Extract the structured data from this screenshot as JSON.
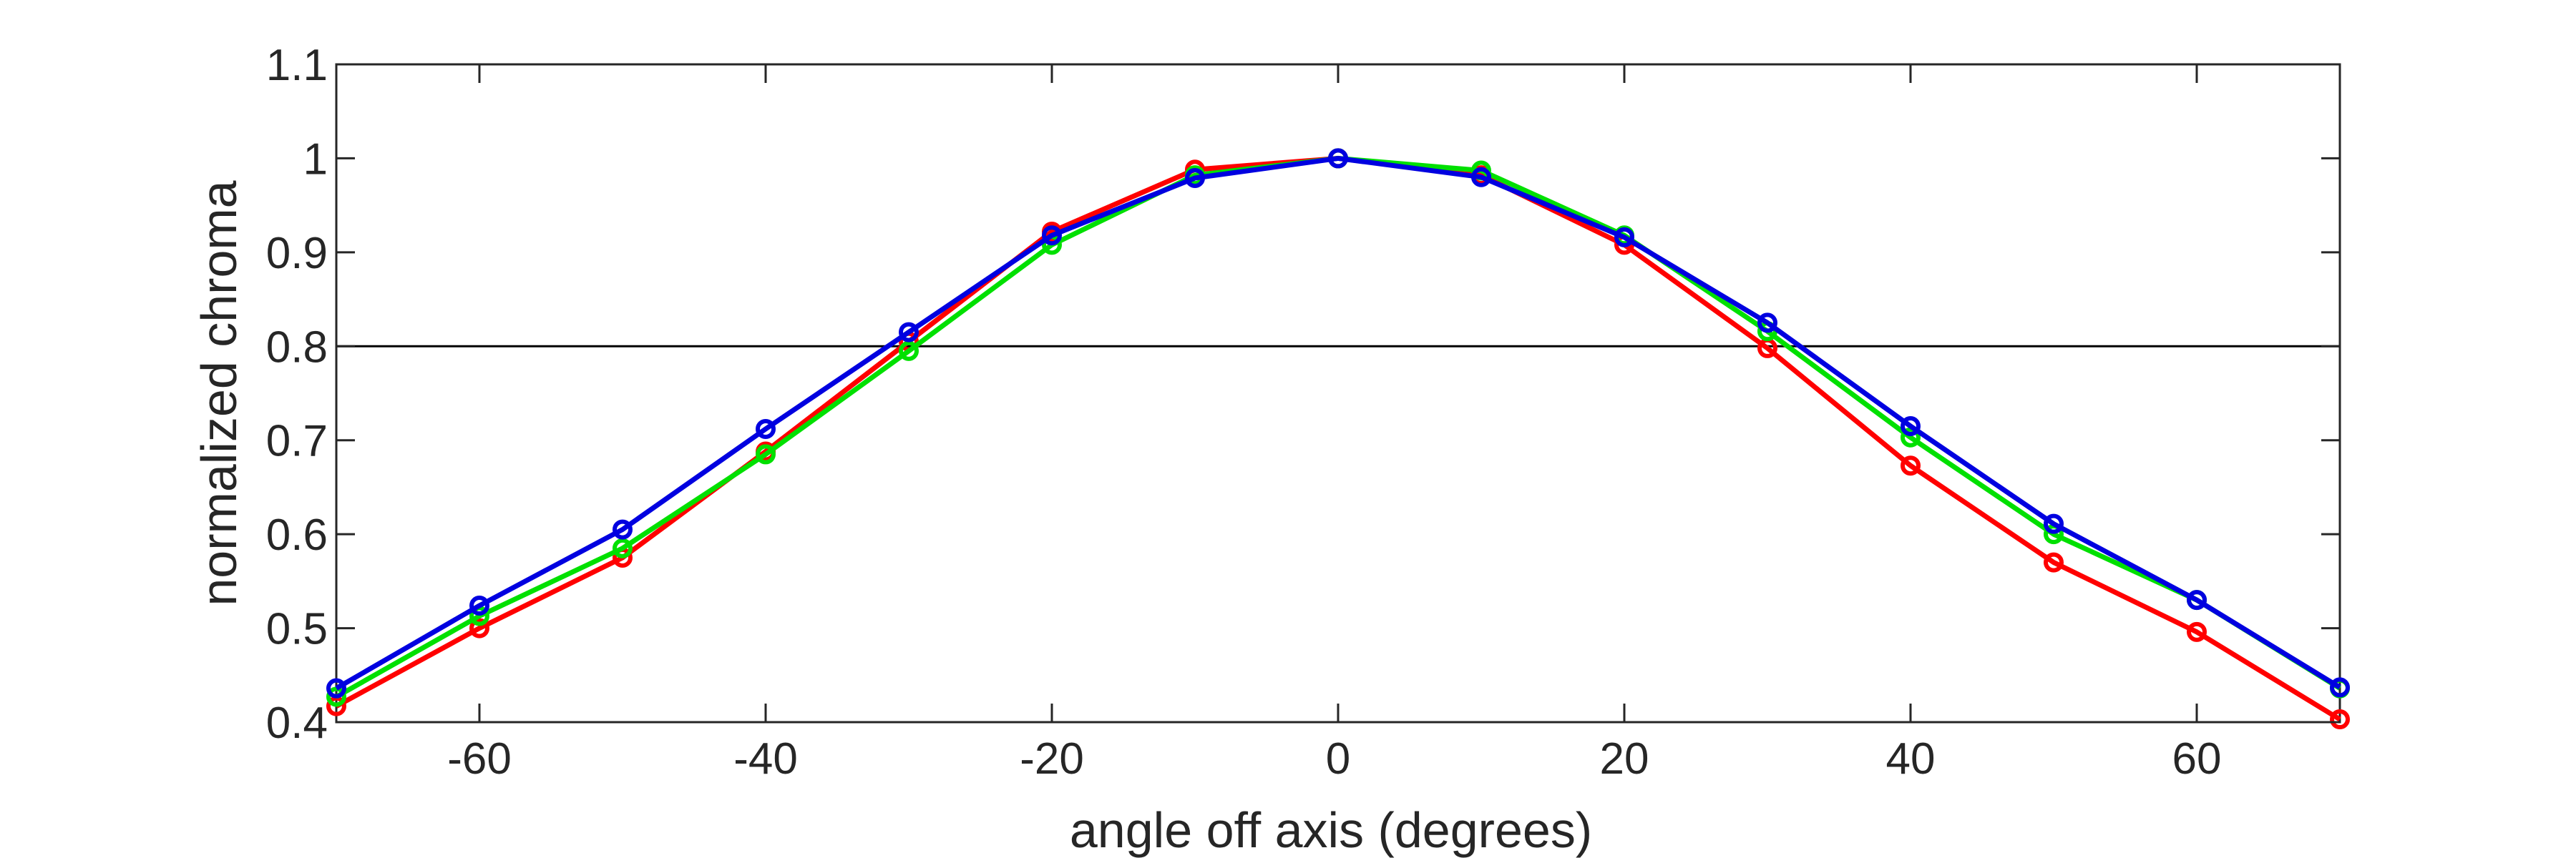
{
  "chart_data": {
    "type": "line",
    "xlabel": "angle off axis (degrees)",
    "ylabel": "normalized chroma",
    "xlim": [
      -70,
      70
    ],
    "ylim": [
      0.4,
      1.1
    ],
    "xticks": [
      -60,
      -40,
      -20,
      0,
      20,
      40,
      60
    ],
    "yticks": [
      0.4,
      0.5,
      0.6,
      0.7,
      0.8,
      0.9,
      1,
      1.1
    ],
    "ytick_labels": [
      "0.4",
      "0.5",
      "0.6",
      "0.7",
      "0.8",
      "0.9",
      "1",
      "1.1"
    ],
    "reference_line_y": 0.8,
    "marker": "circle",
    "grid": false,
    "x": [
      -70,
      -60,
      -50,
      -40,
      -30,
      -20,
      -10,
      0,
      10,
      20,
      30,
      40,
      50,
      60,
      70
    ],
    "series": [
      {
        "color": "#ff0000",
        "values": [
          0.417,
          0.5,
          0.575,
          0.688,
          0.805,
          0.922,
          0.988,
          1.0,
          0.982,
          0.908,
          0.798,
          0.673,
          0.57,
          0.496,
          0.403
        ]
      },
      {
        "color": "#00e000",
        "values": [
          0.427,
          0.513,
          0.585,
          0.685,
          0.795,
          0.908,
          0.982,
          1.0,
          0.987,
          0.918,
          0.816,
          0.703,
          0.6,
          0.53,
          0.436
        ]
      },
      {
        "color": "#0000e0",
        "values": [
          0.436,
          0.524,
          0.605,
          0.712,
          0.815,
          0.918,
          0.979,
          1.0,
          0.98,
          0.916,
          0.825,
          0.715,
          0.611,
          0.53,
          0.437
        ]
      }
    ]
  }
}
